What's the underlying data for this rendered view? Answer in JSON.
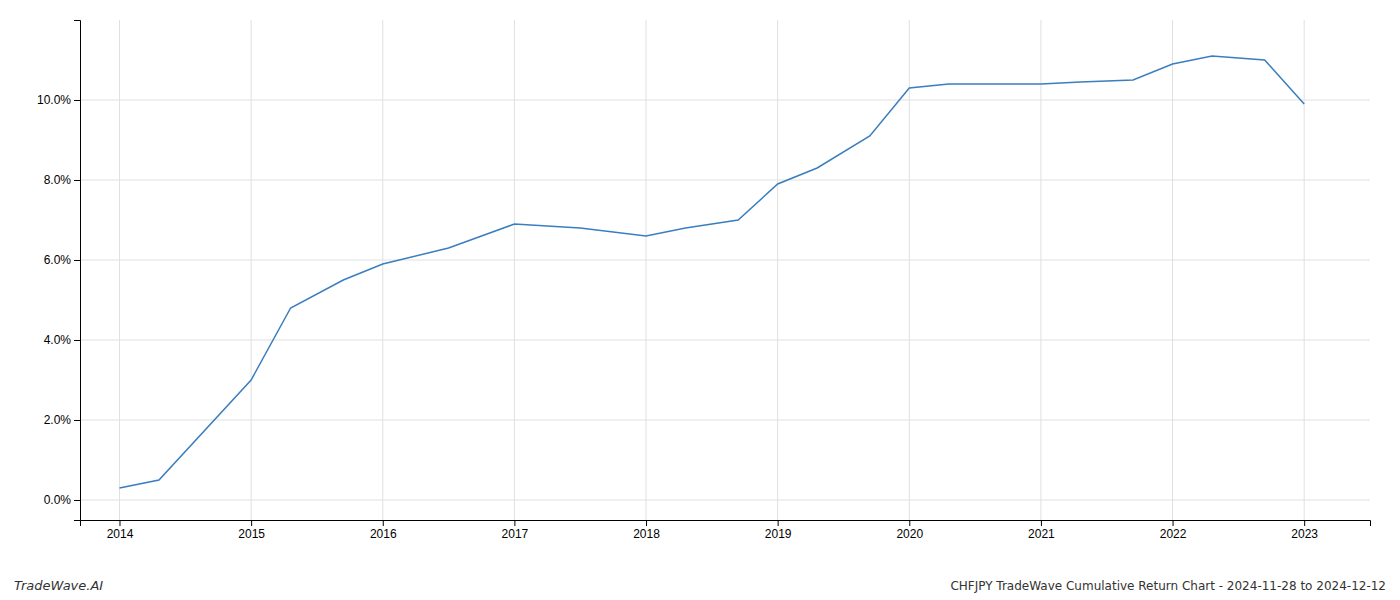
{
  "chart_data": {
    "type": "line",
    "title": "CHFJPY TradeWave Cumulative Return Chart - 2024-11-28 to 2024-12-12",
    "annotations": [
      "TradeWave.AI"
    ],
    "x": [
      2014,
      2014.3,
      2015,
      2015.3,
      2015.7,
      2016,
      2016.5,
      2017,
      2017.5,
      2018,
      2018.3,
      2018.7,
      2019,
      2019.3,
      2019.7,
      2020,
      2020.3,
      2021,
      2021.3,
      2021.7,
      2022,
      2022.3,
      2022.7,
      2023
    ],
    "values": [
      0.003,
      0.005,
      0.03,
      0.048,
      0.055,
      0.059,
      0.063,
      0.069,
      0.068,
      0.066,
      0.068,
      0.07,
      0.079,
      0.083,
      0.091,
      0.103,
      0.104,
      0.104,
      0.1045,
      0.105,
      0.109,
      0.111,
      0.11,
      0.099
    ],
    "color": "#3a7ebf",
    "xlim": [
      2013.7,
      2023.5
    ],
    "ylim": [
      -0.005,
      0.12
    ],
    "xticks": [
      2014,
      2015,
      2016,
      2017,
      2018,
      2019,
      2020,
      2021,
      2022,
      2023
    ],
    "yticks": [
      {
        "value": 0.0,
        "label": "0.0%"
      },
      {
        "value": 0.02,
        "label": "2.0%"
      },
      {
        "value": 0.04,
        "label": "4.0%"
      },
      {
        "value": 0.06,
        "label": "6.0%"
      },
      {
        "value": 0.08,
        "label": "8.0%"
      },
      {
        "value": 0.1,
        "label": "10.0%"
      }
    ],
    "grid": true
  }
}
